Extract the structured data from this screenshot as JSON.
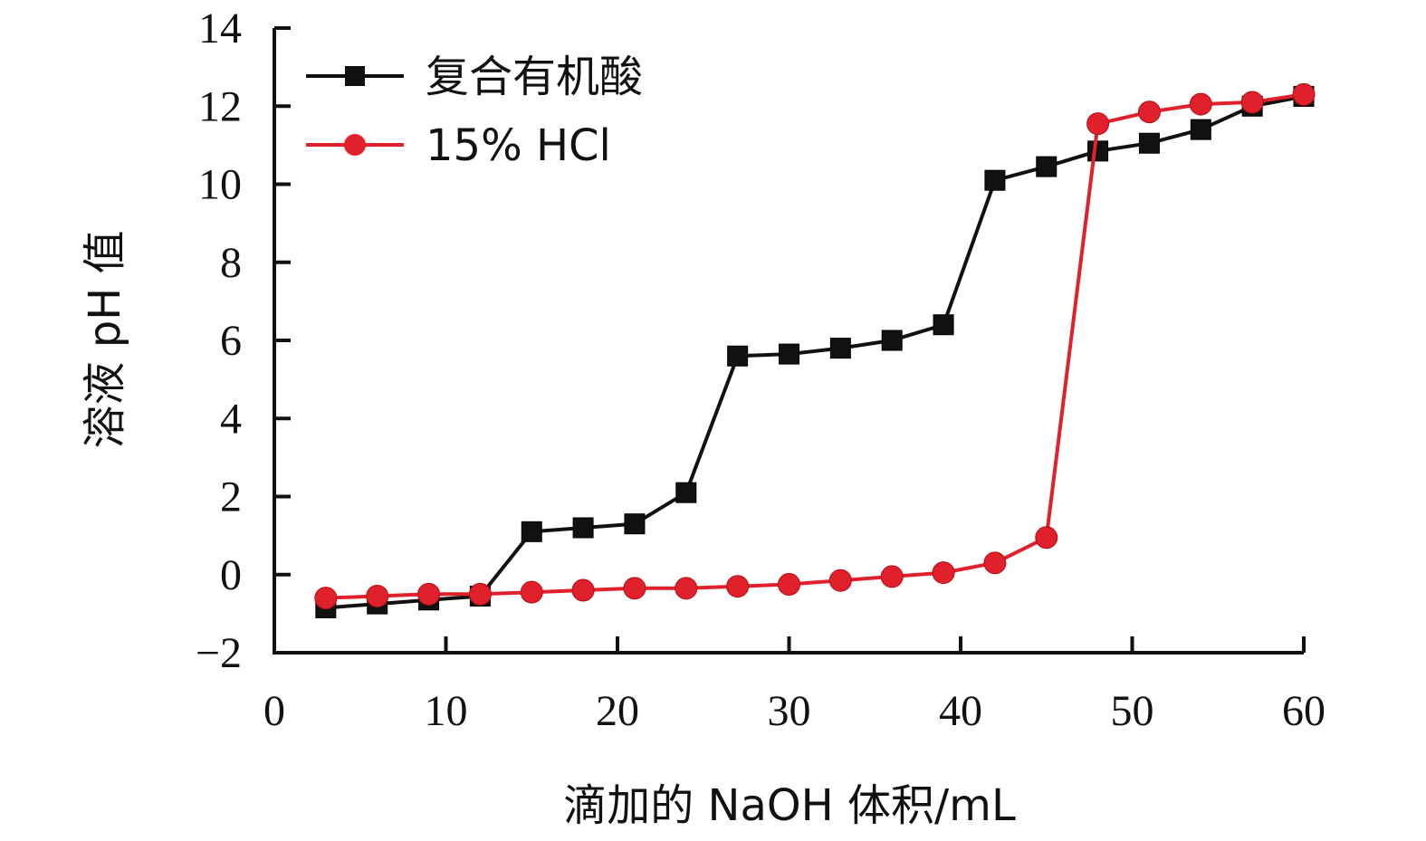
{
  "chart_data": {
    "type": "line",
    "xlabel": "滴加的 NaOH 体积/mL",
    "ylabel": "溶液 pH 值",
    "xlim": [
      0,
      60
    ],
    "ylim": [
      -2,
      14
    ],
    "x_ticks": [
      0,
      10,
      20,
      30,
      40,
      50,
      60
    ],
    "x_tick_labels": [
      "0",
      "10",
      "20",
      "30",
      "40",
      "50",
      "60"
    ],
    "y_ticks": [
      -2,
      0,
      2,
      4,
      6,
      8,
      10,
      12,
      14
    ],
    "y_tick_labels": [
      "−2",
      "0",
      "2",
      "4",
      "6",
      "8",
      "10",
      "12",
      "14"
    ],
    "grid": false,
    "legend_position": "top-left",
    "series": [
      {
        "name": "复合有机酸",
        "color": "#111111",
        "marker": "square",
        "x": [
          3,
          6,
          9,
          12,
          15,
          18,
          21,
          24,
          27,
          30,
          33,
          36,
          39,
          42,
          45,
          48,
          51,
          54,
          57,
          60
        ],
        "y": [
          -0.85,
          -0.75,
          -0.65,
          -0.55,
          1.1,
          1.2,
          1.3,
          2.1,
          5.6,
          5.65,
          5.8,
          6.0,
          6.4,
          10.1,
          10.45,
          10.85,
          11.05,
          11.4,
          12.0,
          12.25
        ]
      },
      {
        "name": "15% HCl",
        "color": "#e0202a",
        "marker": "circle",
        "x": [
          3,
          6,
          9,
          12,
          15,
          18,
          21,
          24,
          27,
          30,
          33,
          36,
          39,
          42,
          45,
          48,
          51,
          54,
          57,
          60
        ],
        "y": [
          -0.6,
          -0.55,
          -0.5,
          -0.5,
          -0.45,
          -0.4,
          -0.35,
          -0.35,
          -0.3,
          -0.25,
          -0.15,
          -0.05,
          0.05,
          0.3,
          0.95,
          11.55,
          11.85,
          12.05,
          12.1,
          12.3
        ]
      }
    ]
  }
}
